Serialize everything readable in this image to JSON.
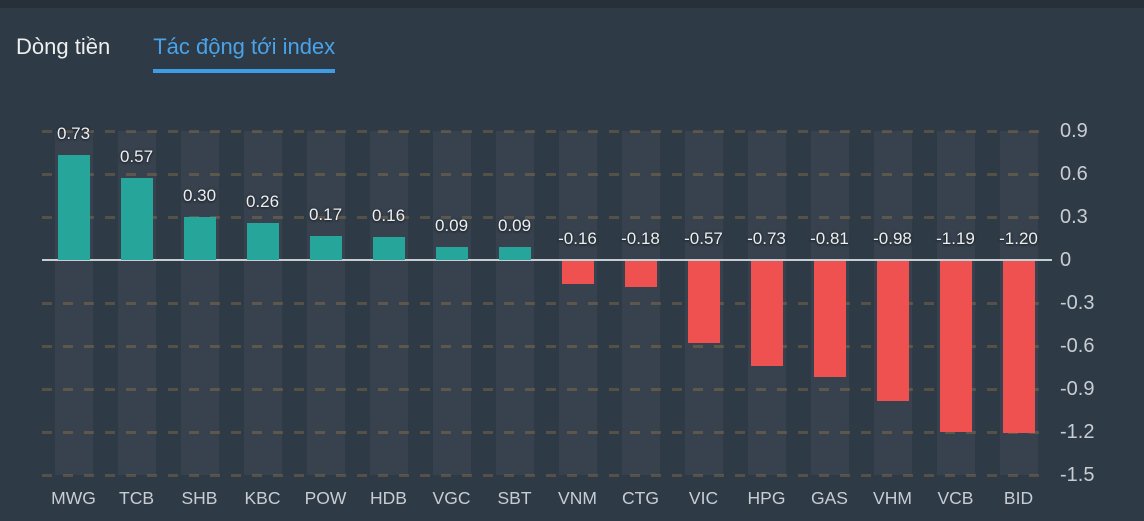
{
  "tabs": [
    {
      "label": "Dòng tiền",
      "active": false
    },
    {
      "label": "Tác động tới index",
      "active": true
    }
  ],
  "chart_data": {
    "type": "bar",
    "title": "",
    "xlabel": "",
    "ylabel": "",
    "categories": [
      "MWG",
      "TCB",
      "SHB",
      "KBC",
      "POW",
      "HDB",
      "VGC",
      "SBT",
      "VNM",
      "CTG",
      "VIC",
      "HPG",
      "GAS",
      "VHM",
      "VCB",
      "BID"
    ],
    "values": [
      0.73,
      0.57,
      0.3,
      0.26,
      0.17,
      0.16,
      0.09,
      0.09,
      -0.16,
      -0.18,
      -0.57,
      -0.73,
      -0.81,
      -0.98,
      -1.19,
      -1.2
    ],
    "value_labels": [
      "0.73",
      "0.57",
      "0.30",
      "0.26",
      "0.17",
      "0.16",
      "0.09",
      "0.09",
      "-0.16",
      "-0.18",
      "-0.57",
      "-0.73",
      "-0.81",
      "-0.98",
      "-1.19",
      "-1.20"
    ],
    "y_ticks": [
      "0.9",
      "0.6",
      "0.3",
      "0",
      "-0.3",
      "-0.6",
      "-0.9",
      "-1.2",
      "-1.5"
    ],
    "ylim": [
      -1.5,
      0.9
    ],
    "grid": "horizontal-dashed",
    "legend_position": "none",
    "colors": {
      "positive": "#26a69a",
      "negative": "#ef5150",
      "zero_line": "#c6cdd3",
      "grid_line": "rgba(201,146,71,0.26)",
      "column_band": "#37424e",
      "background": "#2e3a46",
      "accent_tab": "#3f9de8"
    }
  }
}
